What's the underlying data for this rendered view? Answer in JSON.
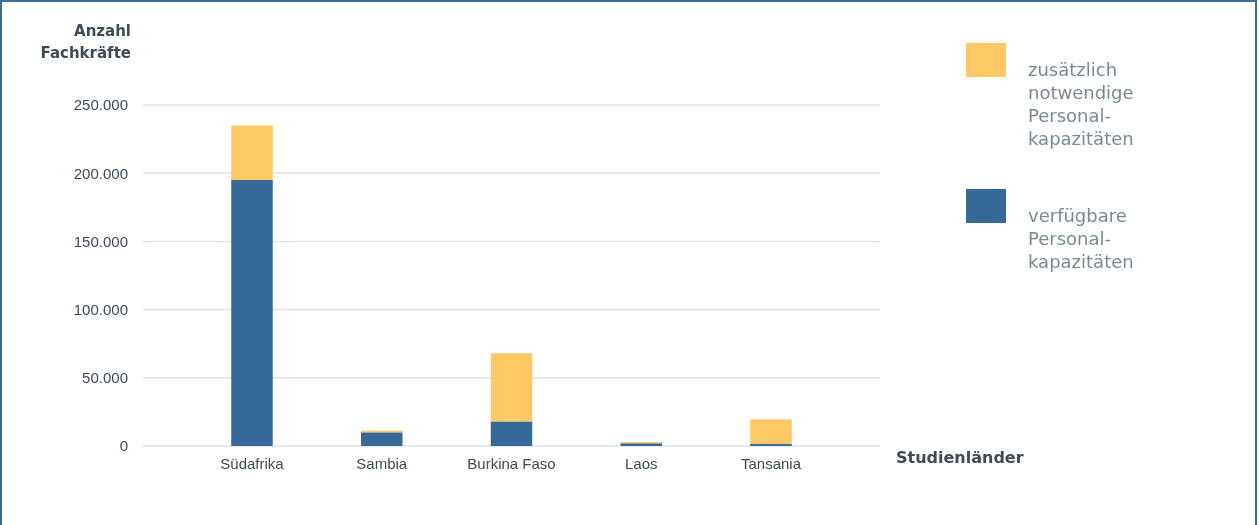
{
  "chart_data": {
    "type": "bar",
    "stacked": true,
    "ylabel": "Anzahl\nFachkräfte",
    "xlabel": "Studienländer",
    "categories": [
      "Südafrika",
      "Sambia",
      "Burkina Faso",
      "Laos",
      "Tansania"
    ],
    "series": [
      {
        "name": "verfügbare\nPersonal-\nkapazitäten",
        "color": "#356a98",
        "values": [
          195000,
          10000,
          18000,
          2000,
          1500
        ]
      },
      {
        "name": "zusätzlich\nnotwendige\nPersonal-\nkapazitäten",
        "color": "#fec965",
        "values": [
          40000,
          1300,
          50000,
          800,
          18000
        ]
      }
    ],
    "ylim": [
      0,
      250000
    ],
    "yticks": [
      {
        "value": 0,
        "label": "0"
      },
      {
        "value": 50000,
        "label": "50.000"
      },
      {
        "value": 100000,
        "label": "100.000"
      },
      {
        "value": 150000,
        "label": "150.000"
      },
      {
        "value": 200000,
        "label": "200.000"
      },
      {
        "value": 250000,
        "label": "250.000"
      }
    ],
    "grid": "y",
    "legend": "right"
  }
}
